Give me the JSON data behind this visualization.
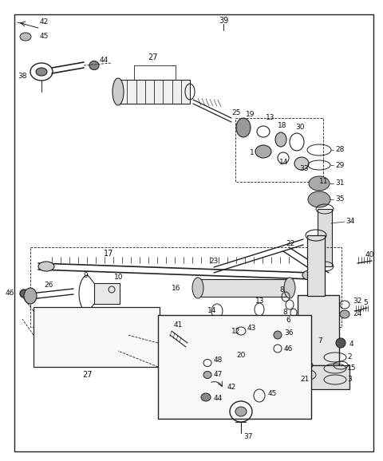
{
  "bg_color": "#ffffff",
  "line_color": "#222222",
  "fig_width": 4.8,
  "fig_height": 5.78,
  "dpi": 100
}
